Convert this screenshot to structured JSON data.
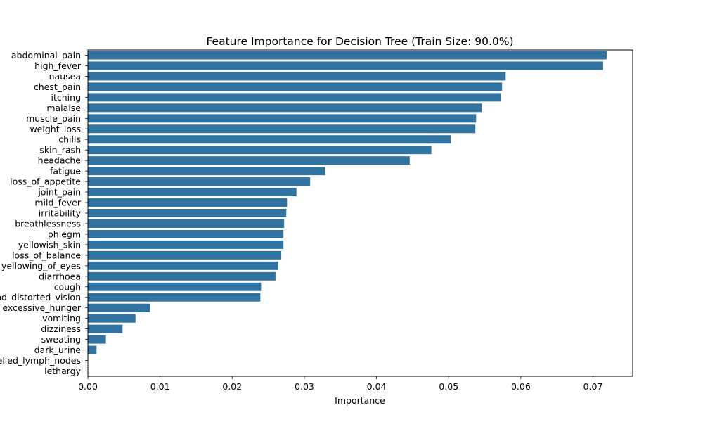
{
  "chart_data": {
    "type": "bar",
    "orientation": "horizontal",
    "title": "Feature Importance for Decision Tree (Train Size: 90.0%)",
    "xlabel": "Importance",
    "ylabel": "",
    "xlim": [
      0,
      0.0755
    ],
    "xticks": [
      "0.00",
      "0.01",
      "0.02",
      "0.03",
      "0.04",
      "0.05",
      "0.06",
      "0.07"
    ],
    "bar_color": "#3274a1",
    "grid": false,
    "categories": [
      "abdominal_pain",
      "high_fever",
      "nausea",
      "chest_pain",
      "itching",
      "malaise",
      "muscle_pain",
      "weight_loss",
      "chills",
      "skin_rash",
      "headache",
      "fatigue",
      "loss_of_appetite",
      "joint_pain",
      "mild_fever",
      "irritability",
      "breathlessness",
      "phlegm",
      "yellowish_skin",
      "loss_of_balance",
      "yellowing_of_eyes",
      "diarrhoea",
      "cough",
      "blurred_and_distorted_vision",
      "excessive_hunger",
      "vomiting",
      "dizziness",
      "sweating",
      "dark_urine",
      "swelled_lymph_nodes",
      "lethargy"
    ],
    "values": [
      0.0719,
      0.0714,
      0.0579,
      0.0574,
      0.0572,
      0.0546,
      0.0538,
      0.0537,
      0.0503,
      0.0476,
      0.0446,
      0.0329,
      0.0308,
      0.0289,
      0.0276,
      0.0275,
      0.0272,
      0.0271,
      0.0271,
      0.0268,
      0.0264,
      0.026,
      0.024,
      0.0239,
      0.0086,
      0.0066,
      0.0048,
      0.0025,
      0.0012,
      0.0,
      0.0
    ]
  }
}
